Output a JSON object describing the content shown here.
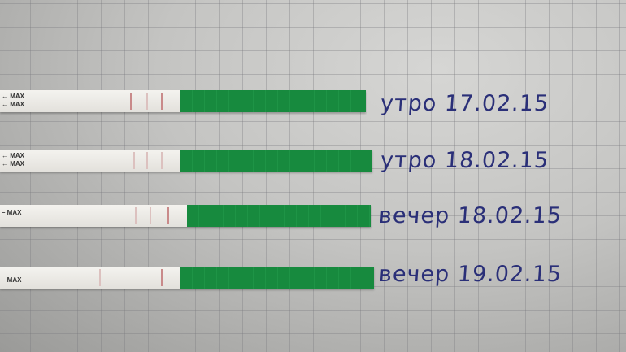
{
  "strips": [
    {
      "max_marks": [
        "← MAX",
        "← MAX"
      ],
      "label": "утро 17.02.15"
    },
    {
      "max_marks": [
        "← MAX",
        "← MAX"
      ],
      "label": "утро 18.02.15"
    },
    {
      "max_marks": [
        "– MAX",
        ""
      ],
      "label": "вечер 18.02.15"
    },
    {
      "max_marks": [
        "– MAX",
        ""
      ],
      "label": "вечер 19.02.15"
    }
  ],
  "colors": {
    "strip_green": "#178a3e",
    "ink": "#2a2f78",
    "paper": "#c9c9c7"
  }
}
